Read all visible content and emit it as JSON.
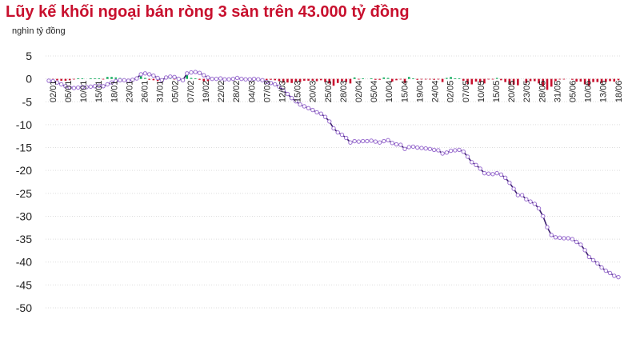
{
  "title": "Lũy kế khối ngoại bán ròng 3 sàn trên 43.000 tỷ đồng",
  "unit_label": "nghìn tỷ đồng",
  "colors": {
    "title": "#c8102e",
    "line": "#3b1f6e",
    "marker": "#9b6fd0",
    "bar_negative": "#c8102e",
    "bar_positive": "#00a651",
    "grid": "#dddddd"
  },
  "chart_data": {
    "type": "bar+line",
    "title": "Lũy kế khối ngoại bán ròng 3 sàn trên 43.000 tỷ đồng",
    "ylabel": "nghìn tỷ đồng",
    "ylim": [
      -50,
      5
    ],
    "yticks": [
      5,
      0,
      -5,
      -10,
      -15,
      -20,
      -25,
      -30,
      -35,
      -40,
      -45,
      -50
    ],
    "grid": true,
    "legend": "none",
    "xticklabels": [
      "02/01",
      "05/01",
      "10/01",
      "15/01",
      "18/01",
      "23/01",
      "26/01",
      "31/01",
      "05/02",
      "07/02",
      "19/02",
      "22/02",
      "28/02",
      "04/03",
      "07/03",
      "12/03",
      "15/03",
      "20/03",
      "25/03",
      "28/03",
      "02/04",
      "05/04",
      "10/04",
      "15/04",
      "19/04",
      "24/04",
      "02/05",
      "07/05",
      "10/05",
      "15/05",
      "20/05",
      "23/05",
      "28/05",
      "31/05",
      "05/06",
      "10/06",
      "13/06",
      "18/06"
    ],
    "series": [
      {
        "kind": "line",
        "values": [
          -0.4,
          -0.5,
          -0.8,
          -1.2,
          -1.6,
          -1.9,
          -2.0,
          -1.9,
          -1.8,
          -1.8,
          -1.7,
          -1.6,
          -1.5,
          -1.6,
          -1.2,
          -0.8,
          -0.5,
          -0.3,
          -0.3,
          -0.4,
          -0.2,
          0.1,
          1.0,
          1.2,
          1.0,
          0.7,
          0.2,
          -0.3,
          0.3,
          0.5,
          0.4,
          0.0,
          -0.3,
          1.2,
          1.4,
          1.5,
          1.3,
          0.8,
          0.3,
          0.0,
          0.0,
          0.1,
          -0.1,
          -0.1,
          0.0,
          0.2,
          0.0,
          -0.1,
          -0.1,
          0.0,
          -0.1,
          -0.3,
          -0.7,
          -0.9,
          -1.2,
          -1.7,
          -2.5,
          -3.3,
          -4.2,
          -4.9,
          -5.6,
          -6.0,
          -6.4,
          -6.8,
          -7.3,
          -7.6,
          -8.3,
          -9.3,
          -10.8,
          -11.7,
          -12.2,
          -12.9,
          -13.9,
          -13.6,
          -13.7,
          -13.6,
          -13.6,
          -13.5,
          -13.7,
          -13.9,
          -13.6,
          -13.4,
          -14.0,
          -14.3,
          -14.4,
          -15.3,
          -14.9,
          -14.8,
          -15.0,
          -15.1,
          -15.2,
          -15.3,
          -15.5,
          -15.6,
          -16.3,
          -16.1,
          -15.7,
          -15.6,
          -15.5,
          -15.9,
          -17.0,
          -18.2,
          -18.8,
          -19.6,
          -20.6,
          -20.7,
          -20.8,
          -20.6,
          -20.9,
          -21.6,
          -22.7,
          -24.0,
          -25.4,
          -25.4,
          -26.3,
          -26.8,
          -27.3,
          -28.3,
          -30.0,
          -32.4,
          -34.1,
          -34.6,
          -34.7,
          -34.8,
          -34.8,
          -35.0,
          -35.6,
          -36.2,
          -37.4,
          -38.9,
          -39.6,
          -40.3,
          -41.2,
          -41.9,
          -42.4,
          -43.0,
          -43.3
        ]
      },
      {
        "kind": "bar",
        "values": [
          -0.4,
          -0.1,
          -0.3,
          -0.4,
          -0.4,
          -0.3,
          -0.1,
          0.1,
          0.1,
          0.0,
          0.1,
          0.1,
          0.1,
          -0.1,
          0.4,
          0.4,
          0.3,
          0.2,
          0.0,
          -0.1,
          0.2,
          0.3,
          0.9,
          0.2,
          -0.2,
          -0.3,
          -0.5,
          -0.5,
          0.6,
          0.2,
          -0.1,
          -0.4,
          -0.3,
          1.5,
          0.2,
          0.1,
          -0.2,
          -0.5,
          -0.5,
          -0.3,
          0.0,
          0.1,
          -0.2,
          0.0,
          0.1,
          0.2,
          -0.2,
          -0.1,
          0.0,
          0.1,
          -0.1,
          -0.2,
          -0.4,
          -0.2,
          -0.3,
          -0.5,
          -0.8,
          -0.8,
          -0.9,
          -0.7,
          -0.7,
          -0.4,
          -0.4,
          -0.4,
          -0.5,
          -0.3,
          -0.7,
          -1.0,
          -1.5,
          -0.9,
          -0.5,
          -0.7,
          -1.0,
          0.3,
          -0.1,
          0.1,
          0.0,
          0.1,
          -0.2,
          -0.2,
          0.3,
          0.2,
          -0.6,
          -0.3,
          -0.1,
          -0.9,
          0.4,
          0.1,
          -0.2,
          -0.1,
          -0.1,
          -0.1,
          -0.2,
          -0.1,
          -0.7,
          0.2,
          0.4,
          0.1,
          0.1,
          -0.4,
          -1.1,
          -1.2,
          -0.6,
          -0.8,
          -1.0,
          -0.1,
          -0.1,
          0.2,
          -0.3,
          -0.7,
          -1.1,
          -1.3,
          -1.4,
          0.0,
          -0.9,
          -0.5,
          -0.5,
          -1.0,
          -1.7,
          -2.4,
          -1.7,
          -0.5,
          -0.1,
          -0.1,
          0.0,
          -0.2,
          -0.6,
          -0.6,
          -1.2,
          -1.5,
          -0.7,
          -0.7,
          -0.9,
          -0.7,
          -0.5,
          -0.6,
          -0.3
        ]
      }
    ]
  }
}
